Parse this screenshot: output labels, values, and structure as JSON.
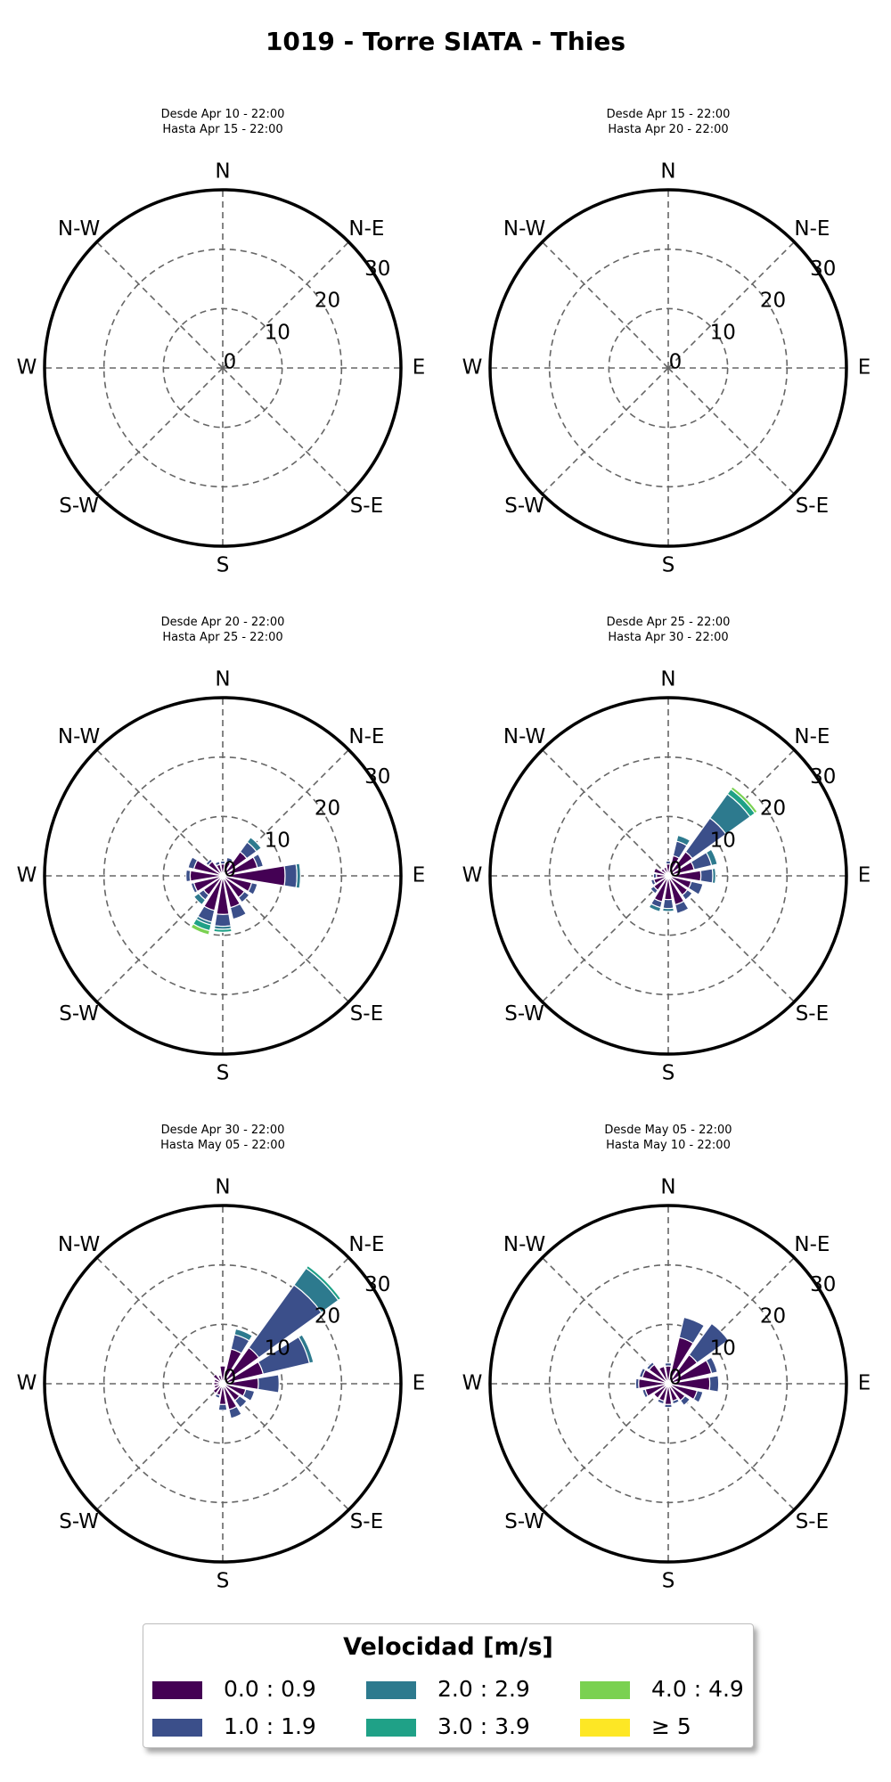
{
  "title": "1019 - Torre SIATA - Thies",
  "chart_data": {
    "type": "windrose",
    "radial_ticks": [
      "0",
      "10",
      "20",
      "30"
    ],
    "rmax": 30,
    "directions": [
      "N",
      "N-E",
      "E",
      "S-E",
      "S",
      "S-W",
      "W",
      "N-W"
    ],
    "legend": {
      "title": "Velocidad [m/s]",
      "bins": [
        {
          "label": "0.0 : 0.9",
          "color": "#440154"
        },
        {
          "label": "1.0 : 1.9",
          "color": "#3b4f8a"
        },
        {
          "label": "2.0 : 2.9",
          "color": "#2d7a8e"
        },
        {
          "label": "3.0 : 3.9",
          "color": "#1fa187"
        },
        {
          "label": "4.0 : 4.9",
          "color": "#7ad151"
        },
        {
          "label": "≥  5",
          "color": "#fde725"
        }
      ]
    },
    "panels": [
      {
        "subtitle": [
          "Desde Apr 10 - 22:00",
          "Hasta Apr 15 - 22:00"
        ],
        "sectors": []
      },
      {
        "subtitle": [
          "Desde Apr 15 - 22:00",
          "Hasta Apr 20 - 22:00"
        ],
        "sectors": []
      },
      {
        "subtitle": [
          "Desde Apr 20 - 22:00",
          "Hasta Apr 25 - 22:00"
        ],
        "sectors": [
          {
            "dir": 0,
            "values": [
              2.0,
              0.5
            ]
          },
          {
            "dir": 22.5,
            "values": [
              2.5,
              0.7
            ]
          },
          {
            "dir": 45,
            "values": [
              5.0,
              2.0,
              1.0
            ]
          },
          {
            "dir": 67.5,
            "values": [
              6.0,
              1.0
            ]
          },
          {
            "dir": 90,
            "values": [
              10.5,
              2.0,
              0.6
            ]
          },
          {
            "dir": 112.5,
            "values": [
              5.0,
              1.0
            ]
          },
          {
            "dir": 135,
            "values": [
              4.5,
              1.0
            ]
          },
          {
            "dir": 157.5,
            "values": [
              5.5,
              2.0
            ]
          },
          {
            "dir": 180,
            "values": [
              6.5,
              2.0,
              0.5,
              0.5
            ]
          },
          {
            "dir": 202.5,
            "values": [
              6.0,
              2.0,
              0.5,
              1.0,
              0.7
            ]
          },
          {
            "dir": 225,
            "values": [
              4.0,
              1.0,
              1.0
            ]
          },
          {
            "dir": 247.5,
            "values": [
              5.0,
              0.5
            ]
          },
          {
            "dir": 270,
            "values": [
              5.5,
              0.7
            ]
          },
          {
            "dir": 292.5,
            "values": [
              5.0,
              1.0
            ]
          },
          {
            "dir": 315,
            "values": [
              3.0,
              0.5
            ]
          },
          {
            "dir": 337.5,
            "values": [
              2.0,
              0.5
            ]
          }
        ]
      },
      {
        "subtitle": [
          "Desde Apr 25 - 22:00",
          "Hasta Apr 30 - 22:00"
        ],
        "sectors": [
          {
            "dir": 0,
            "values": [
              2.0,
              0.5
            ]
          },
          {
            "dir": 22.5,
            "values": [
              3.5,
              2.5,
              1.0
            ]
          },
          {
            "dir": 45,
            "values": [
              5.0,
              7.0,
              5.0,
              1.0,
              0.5
            ]
          },
          {
            "dir": 67.5,
            "values": [
              4.5,
              3.0,
              1.0
            ]
          },
          {
            "dir": 90,
            "values": [
              5.5,
              2.0,
              0.5
            ]
          },
          {
            "dir": 112.5,
            "values": [
              4.0,
              2.0
            ]
          },
          {
            "dir": 135,
            "values": [
              4.0,
              1.0
            ]
          },
          {
            "dir": 157.5,
            "values": [
              5.0,
              1.5
            ]
          },
          {
            "dir": 180,
            "values": [
              4.0,
              1.5,
              0.5
            ]
          },
          {
            "dir": 202.5,
            "values": [
              4.5,
              1.0,
              0.7
            ]
          },
          {
            "dir": 225,
            "values": [
              3.0,
              0.7
            ]
          },
          {
            "dir": 247.5,
            "values": [
              2.5,
              0.5
            ]
          },
          {
            "dir": 270,
            "values": [
              2.0,
              0.5
            ]
          },
          {
            "dir": 292.5,
            "values": [
              2.5
            ]
          },
          {
            "dir": 315,
            "values": [
              1.5
            ]
          },
          {
            "dir": 337.5,
            "values": [
              1.5
            ]
          }
        ]
      },
      {
        "subtitle": [
          "Desde Apr 30 - 22:00",
          "Hasta May 05 - 22:00"
        ],
        "sectors": [
          {
            "dir": 0,
            "values": [
              3.0
            ]
          },
          {
            "dir": 22.5,
            "values": [
              6.0,
              2.5,
              1.0
            ]
          },
          {
            "dir": 45,
            "values": [
              7.5,
              13.0,
              3.5,
              0.5
            ]
          },
          {
            "dir": 67.5,
            "values": [
              7.0,
              8.0,
              0.7
            ]
          },
          {
            "dir": 90,
            "values": [
              6.0,
              3.5
            ]
          },
          {
            "dir": 112.5,
            "values": [
              4.0,
              1.5
            ]
          },
          {
            "dir": 135,
            "values": [
              3.5,
              1.5
            ]
          },
          {
            "dir": 157.5,
            "values": [
              4.5,
              1.5
            ]
          },
          {
            "dir": 180,
            "values": [
              3.5,
              1.0
            ]
          },
          {
            "dir": 202.5,
            "values": [
              2.0,
              0.5
            ]
          },
          {
            "dir": 225,
            "values": [
              2.0
            ]
          },
          {
            "dir": 247.5,
            "values": [
              1.5
            ]
          },
          {
            "dir": 270,
            "values": [
              1.5
            ]
          },
          {
            "dir": 292.5,
            "values": [
              1.5
            ]
          },
          {
            "dir": 315,
            "values": [
              2.0
            ]
          },
          {
            "dir": 337.5,
            "values": [
              1.5
            ]
          }
        ]
      },
      {
        "subtitle": [
          "Desde May 05 - 22:00",
          "Hasta May 10 - 22:00"
        ],
        "sectors": [
          {
            "dir": 0,
            "values": [
              3.0,
              0.5
            ]
          },
          {
            "dir": 22.5,
            "values": [
              8.0,
              3.5
            ]
          },
          {
            "dir": 45,
            "values": [
              6.0,
              6.5
            ]
          },
          {
            "dir": 67.5,
            "values": [
              7.5,
              1.0
            ]
          },
          {
            "dir": 90,
            "values": [
              7.0,
              1.5
            ]
          },
          {
            "dir": 112.5,
            "values": [
              5.0,
              1.0
            ]
          },
          {
            "dir": 135,
            "values": [
              3.5,
              1.0
            ]
          },
          {
            "dir": 157.5,
            "values": [
              3.0,
              0.5
            ]
          },
          {
            "dir": 180,
            "values": [
              3.5,
              0.5
            ]
          },
          {
            "dir": 202.5,
            "values": [
              3.0,
              0.5
            ]
          },
          {
            "dir": 225,
            "values": [
              3.0
            ]
          },
          {
            "dir": 247.5,
            "values": [
              4.0,
              0.5
            ]
          },
          {
            "dir": 270,
            "values": [
              5.0,
              0.5
            ]
          },
          {
            "dir": 292.5,
            "values": [
              4.5,
              0.5
            ]
          },
          {
            "dir": 315,
            "values": [
              4.0,
              0.5
            ]
          },
          {
            "dir": 337.5,
            "values": [
              3.0
            ]
          }
        ]
      }
    ]
  }
}
